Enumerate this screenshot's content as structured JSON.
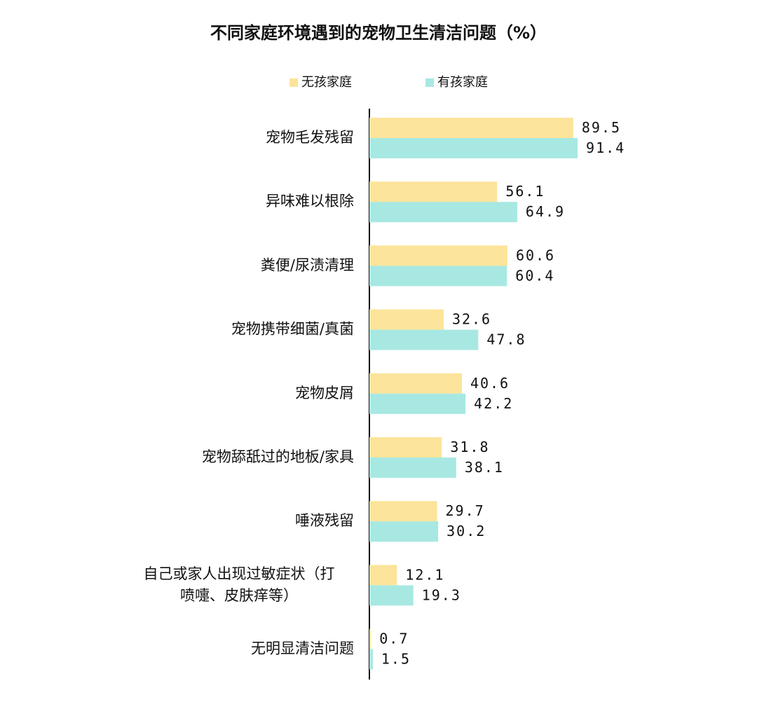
{
  "chart_data": {
    "type": "hbar",
    "title": "不同家庭环境遇到的宠物卫生清洁问题（%）",
    "categories": [
      "宠物毛发残留",
      "异味难以根除",
      "粪便/尿渍清理",
      "宠物携带细菌/真菌",
      "宠物皮屑",
      "宠物舔舐过的地板/家具",
      "唾液残留",
      "自己或家人出现过敏症状（打\n喷嚏、皮肤痒等）",
      "无明显清洁问题"
    ],
    "series": [
      {
        "name": "无孩家庭",
        "color": "#fce49a",
        "values": [
          89.5,
          56.1,
          60.6,
          32.6,
          40.6,
          31.8,
          29.7,
          12.1,
          0.7
        ]
      },
      {
        "name": "有孩家庭",
        "color": "#a8e8e2",
        "values": [
          91.4,
          64.9,
          60.4,
          47.8,
          42.2,
          38.1,
          30.2,
          19.3,
          1.5
        ]
      }
    ],
    "legend": "top"
  }
}
